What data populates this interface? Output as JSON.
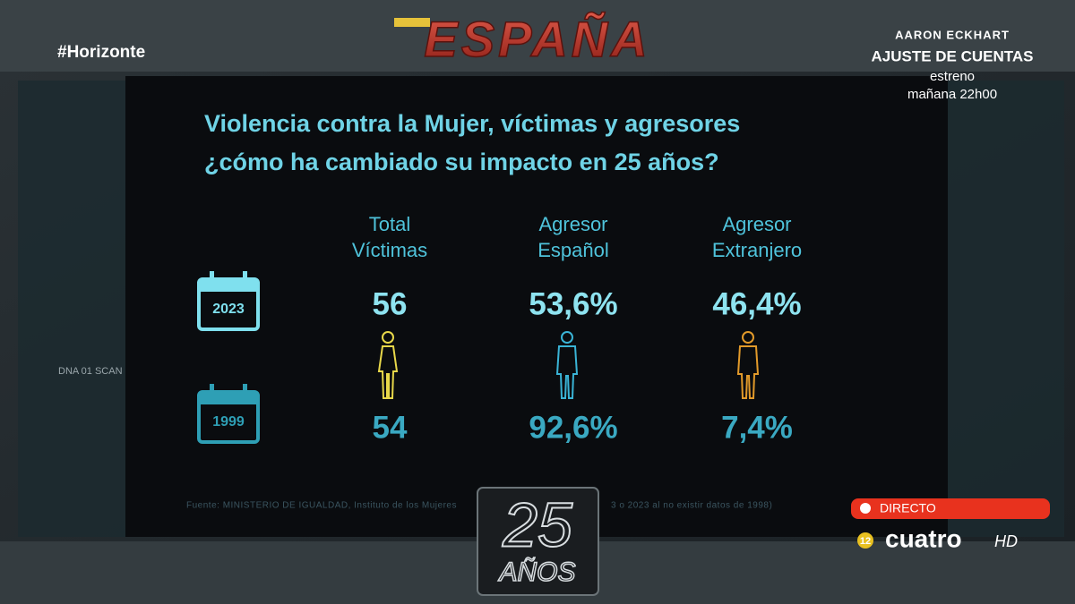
{
  "channel": {
    "hashtag": "#Horizonte",
    "logo": "ESPAÑA",
    "promo_actor": "AARON ECKHART",
    "promo_title": "AJUSTE DE CUENTAS",
    "promo_line1": "estreno",
    "promo_line2": "mañana 22h00",
    "live": "DIRECTO",
    "rating": "12",
    "network": "cuatro",
    "hd": "HD",
    "anniversary_number": "25",
    "anniversary_word": "AÑOS",
    "background_label": "DNA 01 SCAN"
  },
  "infographic": {
    "title_line1": "Violencia contra la Mujer, víctimas y agresores",
    "title_line2": "¿cómo ha cambiado su impacto en 25 años?",
    "columns": [
      {
        "line1": "Total",
        "line2": "Víctimas"
      },
      {
        "line1": "Agresor",
        "line2": "Español"
      },
      {
        "line1": "Agresor",
        "line2": "Extranjero"
      }
    ],
    "rows": [
      {
        "year": "2023",
        "values": [
          "56",
          "53,6%",
          "46,4%"
        ]
      },
      {
        "year": "1999",
        "values": [
          "54",
          "92,6%",
          "7,4%"
        ]
      }
    ],
    "source_left": "Fuente: MINISTERIO DE IGUALDAD, Instituto de los Mujeres",
    "source_right": "3 o 2023 al no existir datos de 1998)"
  }
}
